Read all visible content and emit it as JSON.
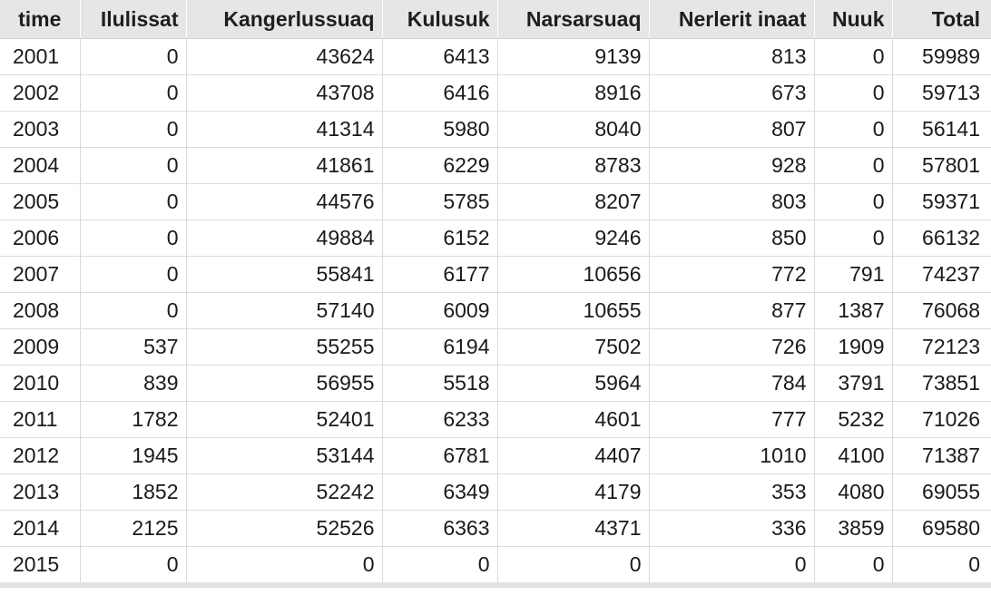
{
  "chart_data": {
    "type": "table",
    "columns": [
      "time",
      "Ilulissat",
      "Kangerlussuaq",
      "Kulusuk",
      "Narsarsuaq",
      "Nerlerit inaat",
      "Nuuk",
      "Total"
    ],
    "rows": [
      [
        "2001",
        "0",
        "43624",
        "6413",
        "9139",
        "813",
        "0",
        "59989"
      ],
      [
        "2002",
        "0",
        "43708",
        "6416",
        "8916",
        "673",
        "0",
        "59713"
      ],
      [
        "2003",
        "0",
        "41314",
        "5980",
        "8040",
        "807",
        "0",
        "56141"
      ],
      [
        "2004",
        "0",
        "41861",
        "6229",
        "8783",
        "928",
        "0",
        "57801"
      ],
      [
        "2005",
        "0",
        "44576",
        "5785",
        "8207",
        "803",
        "0",
        "59371"
      ],
      [
        "2006",
        "0",
        "49884",
        "6152",
        "9246",
        "850",
        "0",
        "66132"
      ],
      [
        "2007",
        "0",
        "55841",
        "6177",
        "10656",
        "772",
        "791",
        "74237"
      ],
      [
        "2008",
        "0",
        "57140",
        "6009",
        "10655",
        "877",
        "1387",
        "76068"
      ],
      [
        "2009",
        "537",
        "55255",
        "6194",
        "7502",
        "726",
        "1909",
        "72123"
      ],
      [
        "2010",
        "839",
        "56955",
        "5518",
        "5964",
        "784",
        "3791",
        "73851"
      ],
      [
        "2011",
        "1782",
        "52401",
        "6233",
        "4601",
        "777",
        "5232",
        "71026"
      ],
      [
        "2012",
        "1945",
        "53144",
        "6781",
        "4407",
        "1010",
        "4100",
        "71387"
      ],
      [
        "2013",
        "1852",
        "52242",
        "6349",
        "4179",
        "353",
        "4080",
        "69055"
      ],
      [
        "2014",
        "2125",
        "52526",
        "6363",
        "4371",
        "336",
        "3859",
        "69580"
      ],
      [
        "2015",
        "0",
        "0",
        "0",
        "0",
        "0",
        "0",
        "0"
      ]
    ]
  },
  "colors": {
    "header_background": "#e6e6e6",
    "text": "#1a1a1a",
    "grid_line": "#dcdcdc"
  }
}
